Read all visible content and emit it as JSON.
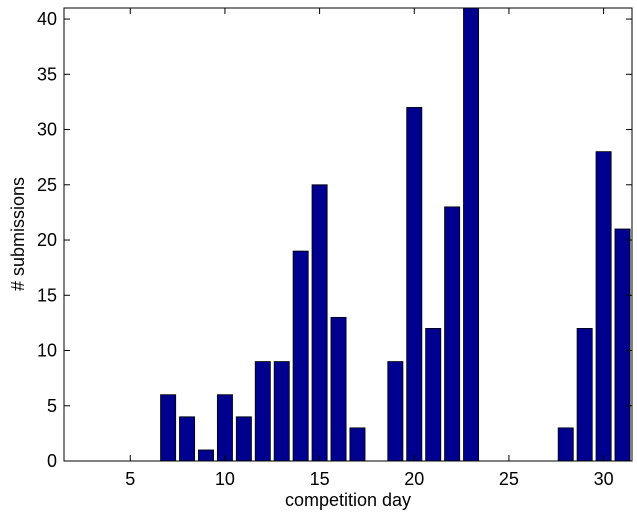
{
  "chart_data": {
    "type": "bar",
    "x": [
      1,
      2,
      3,
      4,
      5,
      6,
      7,
      8,
      9,
      10,
      11,
      12,
      13,
      14,
      15,
      16,
      17,
      18,
      19,
      20,
      21,
      22,
      23,
      24,
      25,
      26,
      27,
      28,
      29,
      30,
      31
    ],
    "values": [
      0,
      0,
      0,
      0,
      0,
      0,
      6,
      4,
      1,
      6,
      4,
      9,
      9,
      19,
      25,
      13,
      3,
      0,
      9,
      32,
      12,
      23,
      41,
      0,
      0,
      0,
      0,
      3,
      12,
      28,
      21
    ],
    "xlabel": "competition day",
    "ylabel": "# submissions",
    "xlim": [
      1.5,
      31.5
    ],
    "ylim": [
      0,
      41
    ],
    "xticks": [
      5,
      10,
      15,
      20,
      25,
      30
    ],
    "yticks": [
      0,
      5,
      10,
      15,
      20,
      25,
      30,
      35,
      40
    ],
    "grid": false,
    "bar_color": "#00008f",
    "bar_edge_color": "#000000"
  }
}
